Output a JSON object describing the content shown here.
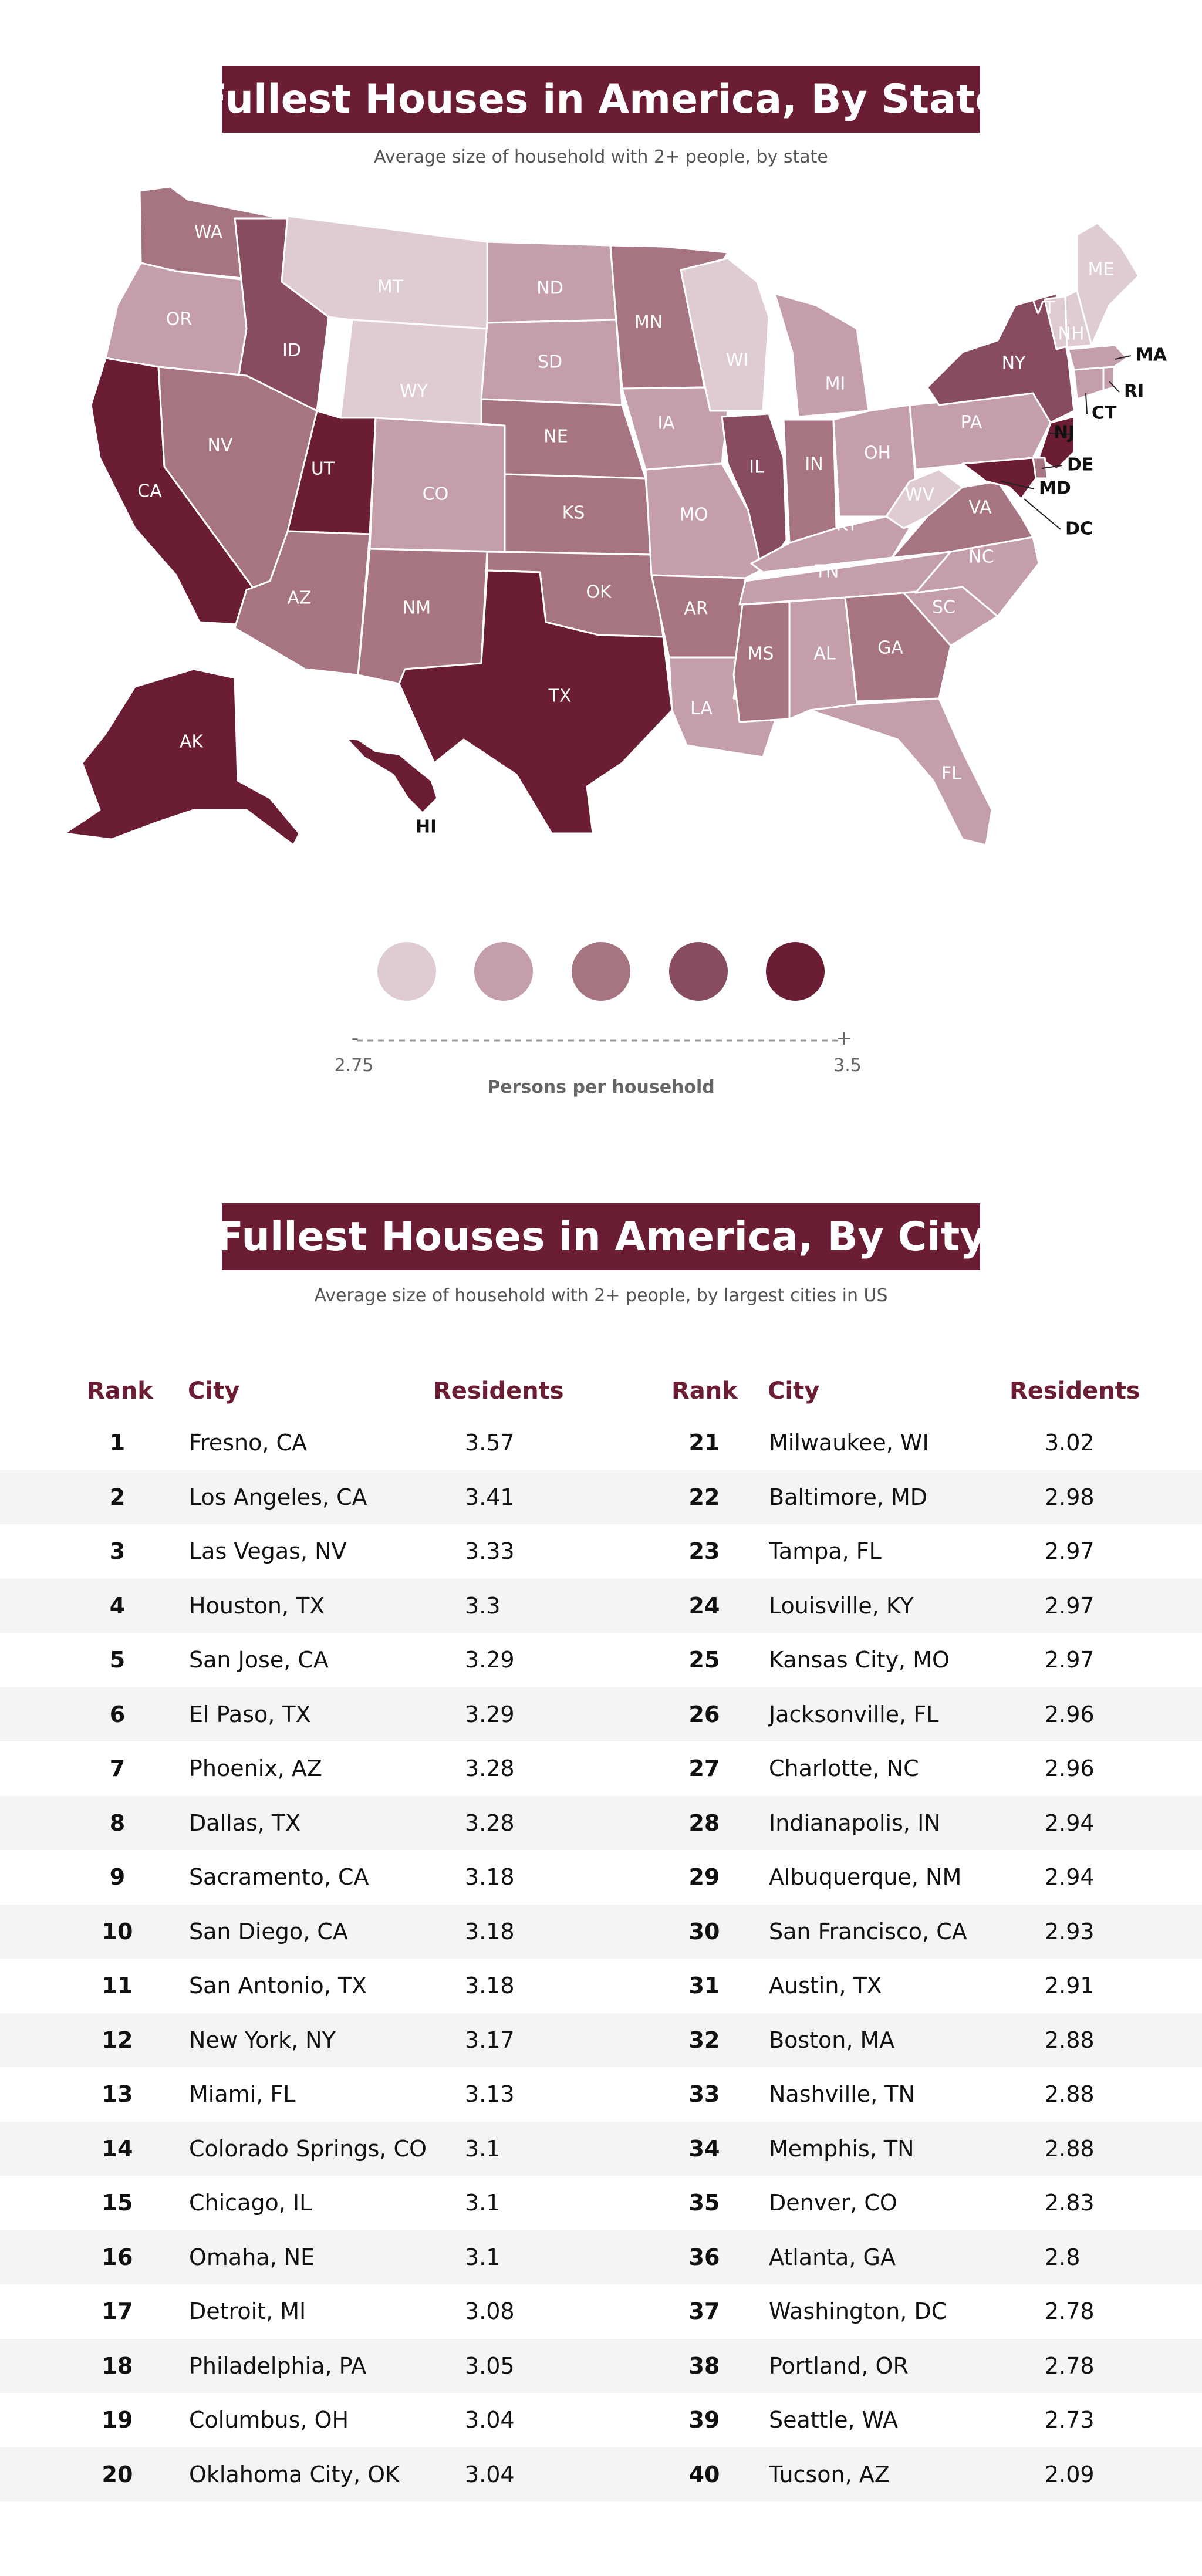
{
  "state_section": {
    "title": "Fullest Houses in America, By State",
    "subtitle": "Average size of household with 2+ people, by state"
  },
  "legend": {
    "min_label": "2.75",
    "max_label": "3.5",
    "minus_sign": "-",
    "plus_sign": "+",
    "axis_label": "Persons per household",
    "colors": [
      "#dfcbd2",
      "#c49fa9",
      "#a67581",
      "#874c5d",
      "#6b1d33"
    ]
  },
  "states": [
    {
      "abbr": "WA",
      "shade": 3
    },
    {
      "abbr": "OR",
      "shade": 2
    },
    {
      "abbr": "CA",
      "shade": 5
    },
    {
      "abbr": "ID",
      "shade": 4
    },
    {
      "abbr": "NV",
      "shade": 3
    },
    {
      "abbr": "MT",
      "shade": 1
    },
    {
      "abbr": "WY",
      "shade": 1
    },
    {
      "abbr": "UT",
      "shade": 5
    },
    {
      "abbr": "AZ",
      "shade": 3
    },
    {
      "abbr": "CO",
      "shade": 2
    },
    {
      "abbr": "NM",
      "shade": 3
    },
    {
      "abbr": "ND",
      "shade": 2
    },
    {
      "abbr": "SD",
      "shade": 2
    },
    {
      "abbr": "NE",
      "shade": 3
    },
    {
      "abbr": "KS",
      "shade": 3
    },
    {
      "abbr": "OK",
      "shade": 3
    },
    {
      "abbr": "TX",
      "shade": 5
    },
    {
      "abbr": "MN",
      "shade": 3
    },
    {
      "abbr": "IA",
      "shade": 2
    },
    {
      "abbr": "MO",
      "shade": 2
    },
    {
      "abbr": "AR",
      "shade": 3
    },
    {
      "abbr": "LA",
      "shade": 2
    },
    {
      "abbr": "WI",
      "shade": 1
    },
    {
      "abbr": "IL",
      "shade": 4
    },
    {
      "abbr": "MI",
      "shade": 2
    },
    {
      "abbr": "IN",
      "shade": 3
    },
    {
      "abbr": "OH",
      "shade": 2
    },
    {
      "abbr": "KY",
      "shade": 2
    },
    {
      "abbr": "TN",
      "shade": 2
    },
    {
      "abbr": "MS",
      "shade": 3
    },
    {
      "abbr": "AL",
      "shade": 2
    },
    {
      "abbr": "GA",
      "shade": 3
    },
    {
      "abbr": "FL",
      "shade": 2
    },
    {
      "abbr": "SC",
      "shade": 2
    },
    {
      "abbr": "NC",
      "shade": 2
    },
    {
      "abbr": "VA",
      "shade": 3
    },
    {
      "abbr": "WV",
      "shade": 1
    },
    {
      "abbr": "PA",
      "shade": 2
    },
    {
      "abbr": "NY",
      "shade": 4
    },
    {
      "abbr": "NJ",
      "shade": 5
    },
    {
      "abbr": "DE",
      "shade": 3
    },
    {
      "abbr": "MD",
      "shade": 5
    },
    {
      "abbr": "DC",
      "shade": 2
    },
    {
      "abbr": "CT",
      "shade": 2
    },
    {
      "abbr": "RI",
      "shade": 2
    },
    {
      "abbr": "MA",
      "shade": 2
    },
    {
      "abbr": "VT",
      "shade": 1
    },
    {
      "abbr": "NH",
      "shade": 1
    },
    {
      "abbr": "ME",
      "shade": 1
    },
    {
      "abbr": "AK",
      "shade": 5
    },
    {
      "abbr": "HI",
      "shade": 5
    }
  ],
  "city_section": {
    "title": "Fullest Houses in America, By City",
    "subtitle": "Average size of household with 2+ people, by largest cities in US",
    "headers": {
      "rank": "Rank",
      "city": "City",
      "residents": "Residents"
    }
  },
  "cities": [
    {
      "rank": "1",
      "city": "Fresno, CA",
      "residents": "3.57"
    },
    {
      "rank": "2",
      "city": "Los Angeles, CA",
      "residents": "3.41"
    },
    {
      "rank": "3",
      "city": "Las Vegas, NV",
      "residents": "3.33"
    },
    {
      "rank": "4",
      "city": "Houston, TX",
      "residents": "3.3"
    },
    {
      "rank": "5",
      "city": "San Jose, CA",
      "residents": "3.29"
    },
    {
      "rank": "6",
      "city": "El Paso, TX",
      "residents": "3.29"
    },
    {
      "rank": "7",
      "city": "Phoenix, AZ",
      "residents": "3.28"
    },
    {
      "rank": "8",
      "city": "Dallas, TX",
      "residents": "3.28"
    },
    {
      "rank": "9",
      "city": "Sacramento, CA",
      "residents": "3.18"
    },
    {
      "rank": "10",
      "city": "San Diego, CA",
      "residents": "3.18"
    },
    {
      "rank": "11",
      "city": "San Antonio, TX",
      "residents": "3.18"
    },
    {
      "rank": "12",
      "city": "New York, NY",
      "residents": "3.17"
    },
    {
      "rank": "13",
      "city": "Miami, FL",
      "residents": "3.13"
    },
    {
      "rank": "14",
      "city": "Colorado Springs, CO",
      "residents": "3.1"
    },
    {
      "rank": "15",
      "city": "Chicago, IL",
      "residents": "3.1"
    },
    {
      "rank": "16",
      "city": "Omaha, NE",
      "residents": "3.1"
    },
    {
      "rank": "17",
      "city": "Detroit, MI",
      "residents": "3.08"
    },
    {
      "rank": "18",
      "city": "Philadelphia, PA",
      "residents": "3.05"
    },
    {
      "rank": "19",
      "city": "Columbus, OH",
      "residents": "3.04"
    },
    {
      "rank": "20",
      "city": "Oklahoma City, OK",
      "residents": "3.04"
    },
    {
      "rank": "21",
      "city": "Milwaukee, WI",
      "residents": "3.02"
    },
    {
      "rank": "22",
      "city": "Baltimore, MD",
      "residents": "2.98"
    },
    {
      "rank": "23",
      "city": "Tampa, FL",
      "residents": "2.97"
    },
    {
      "rank": "24",
      "city": "Louisville, KY",
      "residents": "2.97"
    },
    {
      "rank": "25",
      "city": "Kansas City, MO",
      "residents": "2.97"
    },
    {
      "rank": "26",
      "city": "Jacksonville, FL",
      "residents": "2.96"
    },
    {
      "rank": "27",
      "city": "Charlotte, NC",
      "residents": "2.96"
    },
    {
      "rank": "28",
      "city": "Indianapolis, IN",
      "residents": "2.94"
    },
    {
      "rank": "29",
      "city": "Albuquerque, NM",
      "residents": "2.94"
    },
    {
      "rank": "30",
      "city": "San Francisco, CA",
      "residents": "2.93"
    },
    {
      "rank": "31",
      "city": "Austin, TX",
      "residents": "2.91"
    },
    {
      "rank": "32",
      "city": "Boston, MA",
      "residents": "2.88"
    },
    {
      "rank": "33",
      "city": "Nashville, TN",
      "residents": "2.88"
    },
    {
      "rank": "34",
      "city": "Memphis, TN",
      "residents": "2.88"
    },
    {
      "rank": "35",
      "city": "Denver, CO",
      "residents": "2.83"
    },
    {
      "rank": "36",
      "city": "Atlanta, GA",
      "residents": "2.8"
    },
    {
      "rank": "37",
      "city": "Washington, DC",
      "residents": "2.78"
    },
    {
      "rank": "38",
      "city": "Portland, OR",
      "residents": "2.78"
    },
    {
      "rank": "39",
      "city": "Seattle, WA",
      "residents": "2.73"
    },
    {
      "rank": "40",
      "city": "Tucson, AZ",
      "residents": "2.09"
    }
  ]
}
